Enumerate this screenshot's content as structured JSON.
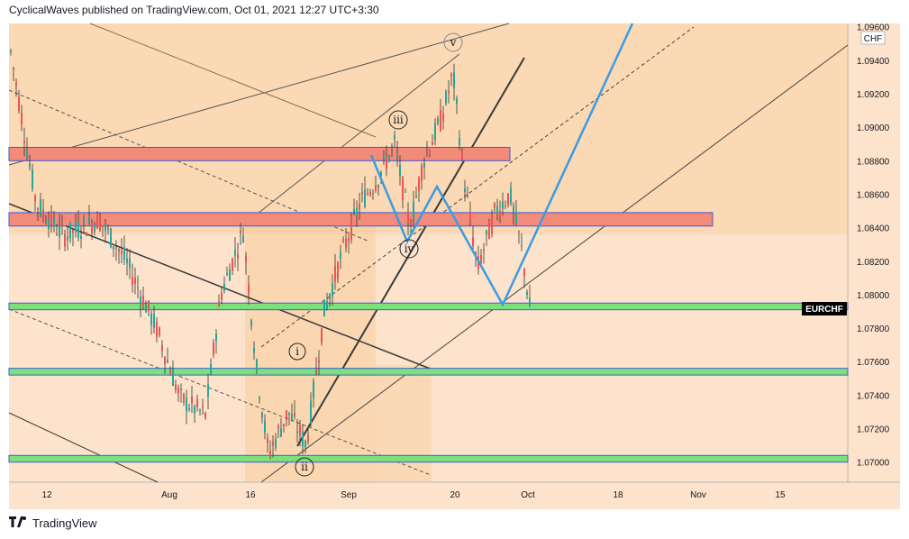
{
  "header": {
    "text": "CyclicalWaves published on TradingView.com, Oct 01, 2021 12:27 UTC+3:30"
  },
  "footer": {
    "logo": "17",
    "brand": "TradingView"
  },
  "chart_data": {
    "type": "candlestick",
    "symbol": "EURCHF",
    "currency": "CHF",
    "y_ticks": [
      "1.09600",
      "1.09400",
      "1.09200",
      "1.09000",
      "1.08800",
      "1.08600",
      "1.08400",
      "1.08200",
      "1.08000",
      "1.07800",
      "1.07600",
      "1.07400",
      "1.07200",
      "1.07000"
    ],
    "y_range": [
      1.0688,
      1.0962
    ],
    "x_ticks": [
      "12",
      "Aug",
      "16",
      "Sep",
      "20",
      "Oct",
      "18",
      "Nov",
      "15"
    ],
    "last_price_label": "EURCHF",
    "last_price": 1.0785,
    "wave_labels": [
      "i",
      "ii",
      "iii",
      "iv",
      "v"
    ],
    "zones": [
      {
        "name": "resistance-1",
        "color": "#f28b7a",
        "low": 1.088,
        "high": 1.0888
      },
      {
        "name": "resistance-2",
        "color": "#f28b7a",
        "low": 1.0841,
        "high": 1.0849
      },
      {
        "name": "support-1",
        "color": "#7ee07a",
        "low": 1.0791,
        "high": 1.0795
      },
      {
        "name": "support-2",
        "color": "#7ee07a",
        "low": 1.0752,
        "high": 1.0756
      },
      {
        "name": "support-3",
        "color": "#7ee07a",
        "low": 1.07,
        "high": 1.0704
      }
    ],
    "colors": {
      "up": "#26a69a",
      "down": "#ef5350",
      "projection": "#3c9be0",
      "background": "#fde3c7"
    }
  }
}
